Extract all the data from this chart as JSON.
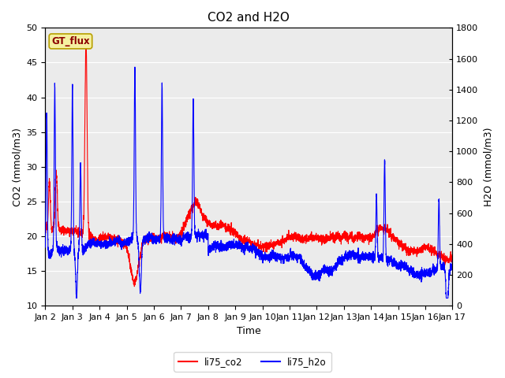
{
  "title": "CO2 and H2O",
  "xlabel": "Time",
  "ylabel_left": "CO2 (mmol/m3)",
  "ylabel_right": "H2O (mmol/m3)",
  "ylim_left": [
    10,
    50
  ],
  "ylim_right": [
    0,
    1800
  ],
  "yticks_left": [
    10,
    15,
    20,
    25,
    30,
    35,
    40,
    45,
    50
  ],
  "yticks_right": [
    0,
    200,
    400,
    600,
    800,
    1000,
    1200,
    1400,
    1600,
    1800
  ],
  "xtick_labels": [
    "Jan 2",
    "Jan 3",
    "Jan 4",
    "Jan 5",
    "Jan 6",
    "Jan 7",
    "Jan 8",
    "Jan 9",
    "Jan 10",
    "Jan 11",
    "Jan 12",
    "Jan 13",
    "Jan 14",
    "Jan 15",
    "Jan 16",
    "Jan 17"
  ],
  "gt_flux_label": "GT_flux",
  "legend_labels": [
    "li75_co2",
    "li75_h2o"
  ],
  "plot_bg_color": "#ebebeb",
  "fig_bg_color": "#ffffff",
  "line_width": 0.8,
  "title_fontsize": 11,
  "axis_label_fontsize": 9,
  "tick_fontsize": 8
}
